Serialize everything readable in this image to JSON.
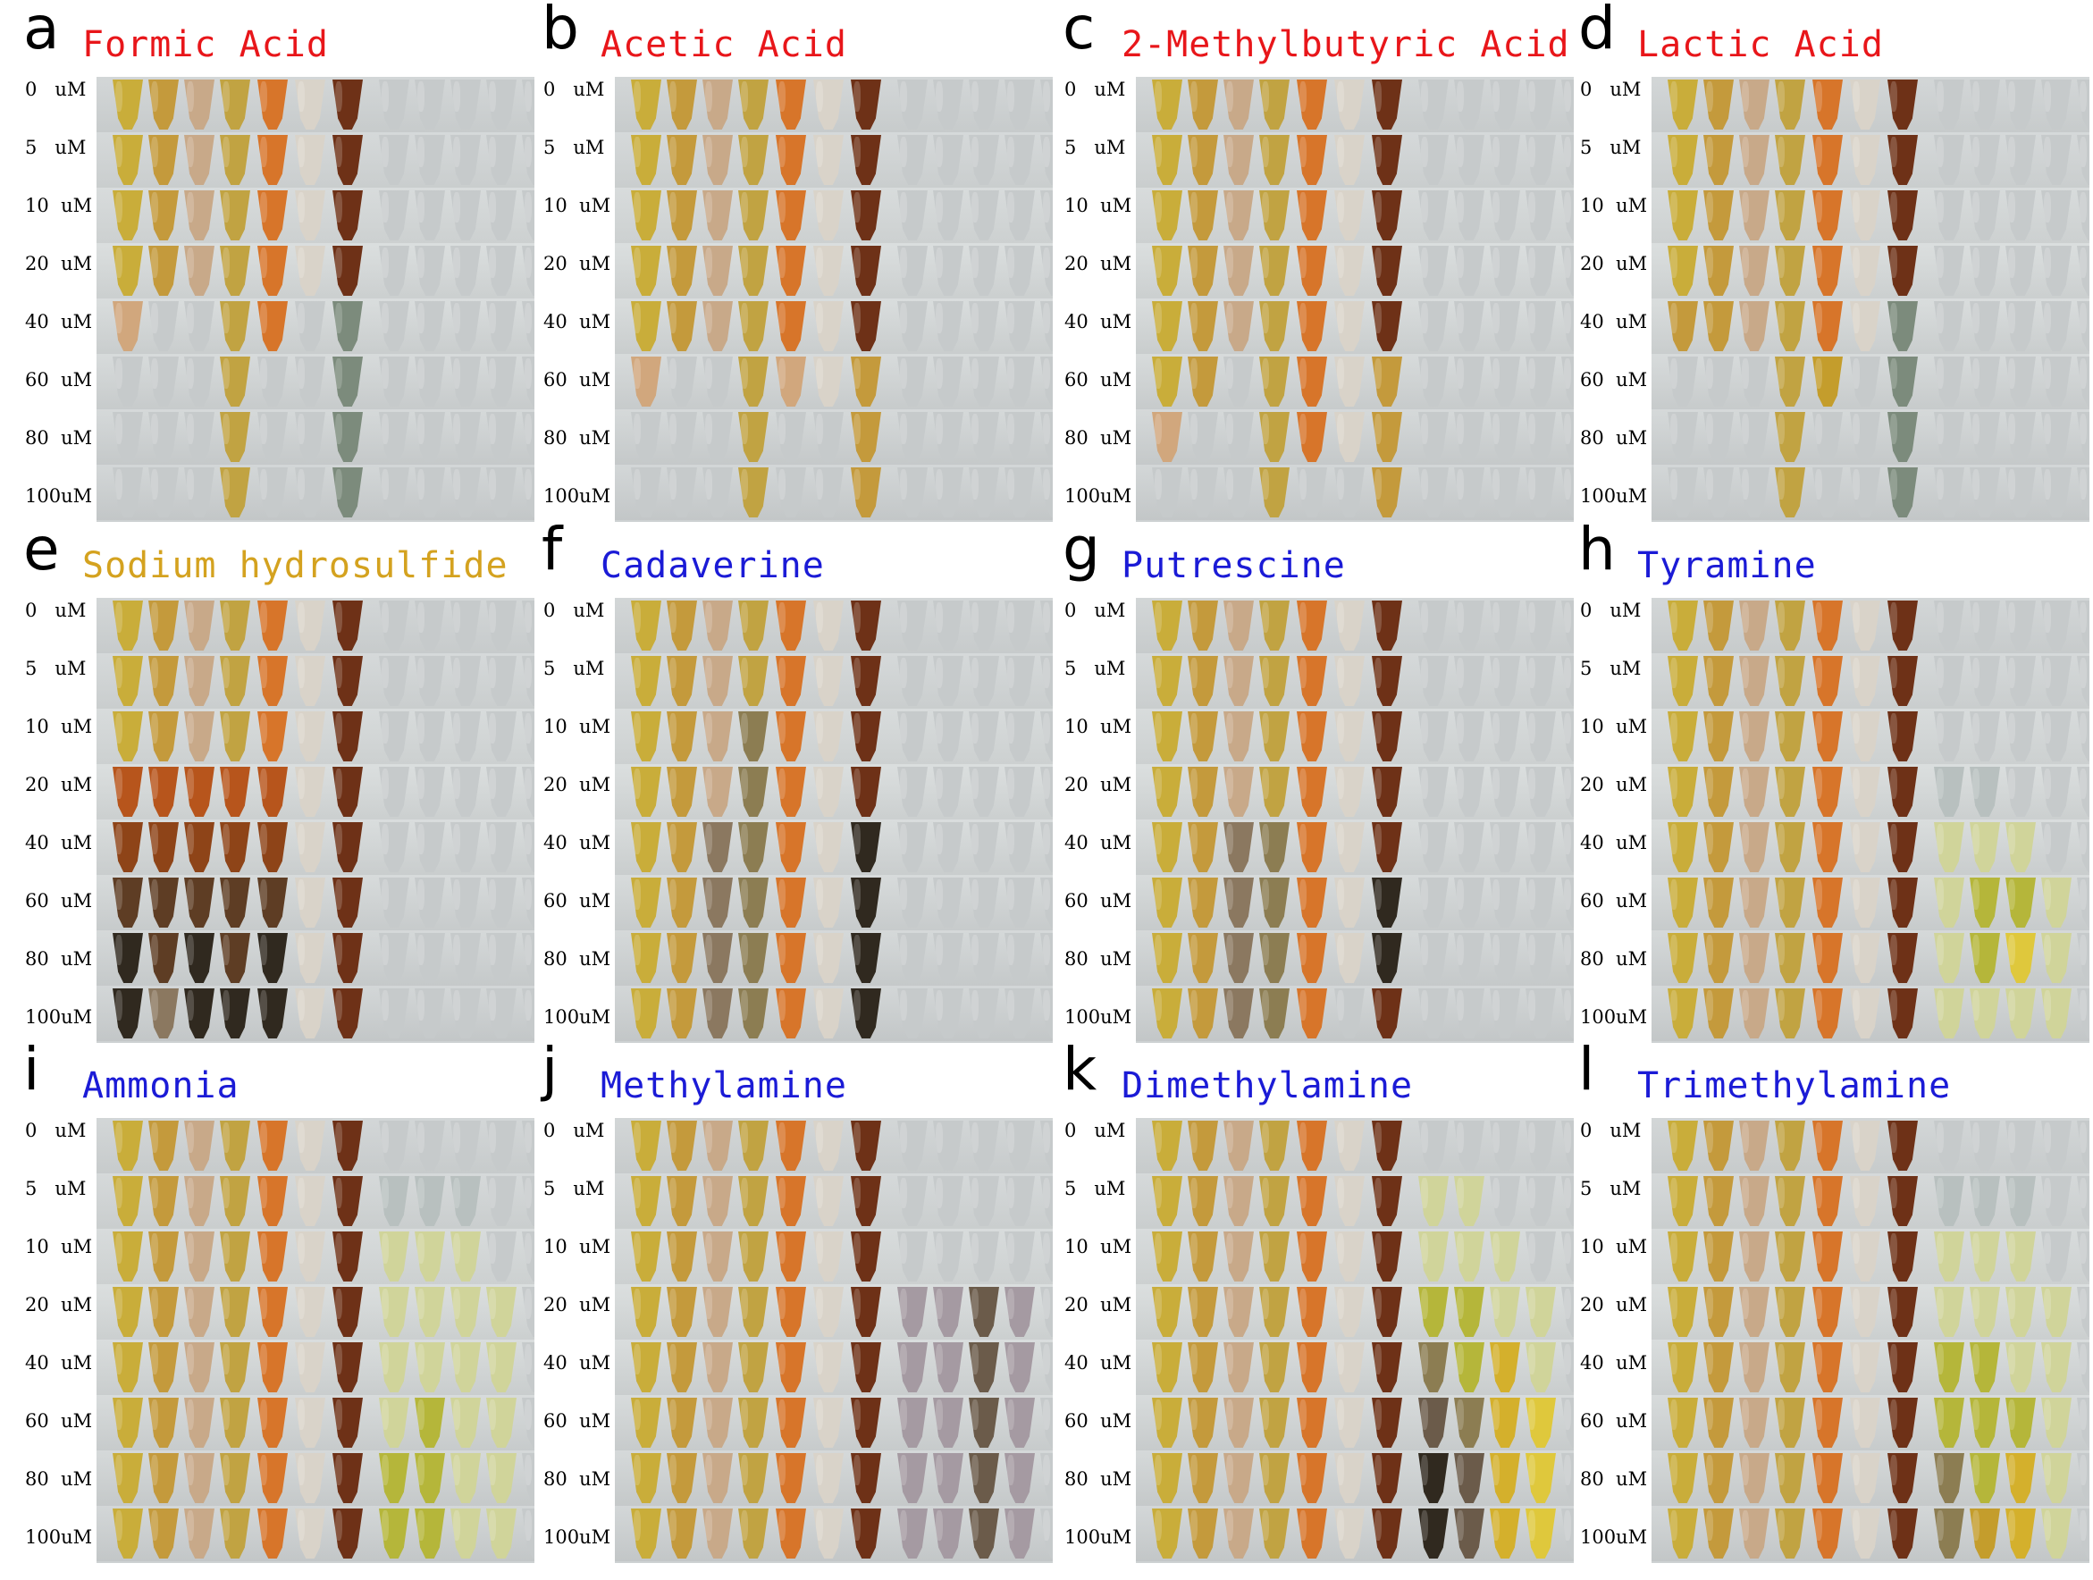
{
  "concentrations": [
    "0   uM",
    "5   uM",
    "10  uM",
    "20  uM",
    "40  uM",
    "60  uM",
    "80  uM",
    "100uM"
  ],
  "colors": {
    "acid": "#e8161a",
    "sulfide": "#d4a21f",
    "amine": "#1b1bd6"
  },
  "tube_colors": {
    "Y": "#c9ad3a",
    "A": "#c49a3c",
    "P": "#c8a989",
    "G": "#c1a342",
    "O": "#d7752a",
    "L": "#d9d3c9",
    "D": "#6e3117",
    "e": "#c6cacb",
    "g": "#b8c0bf",
    "y": "#d0d49a",
    "z": "#b5b63a",
    "s": "#c49d2c",
    "b": "#5e3d24",
    "k": "#30291f",
    "x": "#8b7860",
    "m": "#6b5b4a",
    "v": "#a59aa2",
    "q": "#7c8b7c",
    "r": "#b7551c",
    "t": "#d1a77d",
    "w": "#d4b02c",
    "c": "#dfc83c",
    "n": "#8c7d52",
    "u": "#8e4418"
  },
  "panels": [
    {
      "letter": "a",
      "title": "Formic Acid",
      "title_color": "acid",
      "rows": [
        "YAPGOLDeeeee",
        "YAPGOLDeeeee",
        "YAPGOLDeeeee",
        "YAPGOLDeeeee",
        "teeGOeqeeeee",
        "eeeGeeqeeeee",
        "eeeGeeqeeeee",
        "eeeGeeqeeeee"
      ]
    },
    {
      "letter": "b",
      "title": "Acetic Acid",
      "title_color": "acid",
      "rows": [
        "YAPGOLDeeeee",
        "YAPGOLDeeeee",
        "YAPGOLDeeeee",
        "YAPGOLDeeeee",
        "YAPGOLDeeeee",
        "teeGtLAeeeee",
        "eeeGeeAeeeee",
        "eeeGeeAeeeee"
      ]
    },
    {
      "letter": "c",
      "title": "2-Methylbutyric Acid",
      "title_color": "acid",
      "rows": [
        "YAPGOLDeeeee",
        "YAPGOLDeeeee",
        "YAPGOLDeeeee",
        "YAPGOLDeeeee",
        "YAPGOLDeeeee",
        "YAeGOLAeeeee",
        "teeGOLAeeeee",
        "eeeGeeAeeeee"
      ]
    },
    {
      "letter": "d",
      "title": "Lactic Acid",
      "title_color": "acid",
      "rows": [
        "YAPGOLDeeeee",
        "YAPGOLDeeeee",
        "YAPGOLDeeeee",
        "YAPGOLDeeeee",
        "AAPGOLqeeeee",
        "eeeGseqeeeee",
        "eeeGeeqeeeee",
        "eeeGeeqeeeee"
      ]
    },
    {
      "letter": "e",
      "title": "Sodium hydrosulfide",
      "title_color": "sulfide",
      "rows": [
        "YAPGOLDeeeee",
        "YAPGOLDeeeee",
        "YAPGOLDeeeee",
        "rrrrrLDeeeee",
        "uuuuuLDeeeee",
        "bbbbbLDeeeee",
        "kbkbkLDeeeee",
        "kxkkkLDeeeee"
      ]
    },
    {
      "letter": "f",
      "title": "Cadaverine",
      "title_color": "amine",
      "rows": [
        "YAPGOLDeeeee",
        "YAPGOLDeeeee",
        "YAPnOLDeeeee",
        "YAPnOLDeeeee",
        "YAxnOLkeeeee",
        "YAxnOLkeeeee",
        "YAxnOLkeeeee",
        "YAxnOLkeeeee"
      ]
    },
    {
      "letter": "g",
      "title": "Putrescine",
      "title_color": "amine",
      "rows": [
        "YAPGOLDeeeee",
        "YAPGOLDeeeee",
        "YAPGOLDeeeee",
        "YAPGOLDeeeee",
        "YAxnOLDeeeee",
        "YAxnOLkeeeee",
        "YAxnOLkeeeee",
        "YAxnOeDeeeee"
      ]
    },
    {
      "letter": "h",
      "title": "Tyramine",
      "title_color": "amine",
      "rows": [
        "YAPGOLDeeeee",
        "YAPGOLDeeeee",
        "YAPGOLDeeeee",
        "YAPGOLDggeee",
        "YAPGOLDyyyee",
        "YAPGOLDyzzye",
        "YAPGOLDyzcye",
        "YAPGOLDyyyye"
      ]
    },
    {
      "letter": "i",
      "title": "Ammonia",
      "title_color": "amine",
      "rows": [
        "YAPGOLDeeeee",
        "YAPGOLDgggee",
        "YAPGOLDyyyee",
        "YAPGOLDyyyye",
        "YAPGOLDyyyye",
        "YAPGOLDyzyye",
        "YAPGOLDzzyye",
        "YAPGOLDzzyye"
      ]
    },
    {
      "letter": "j",
      "title": "Methylamine",
      "title_color": "amine",
      "rows": [
        "YAPGOLDeeeee",
        "YAPGOLDeeeee",
        "YAPGOLDeeeee",
        "YAPGOLDvvmve",
        "YAPGOLDvvmve",
        "YAPGOLDvvmve",
        "YAPGOLDvvmve",
        "YAPGOLDvvmve"
      ]
    },
    {
      "letter": "k",
      "title": "Dimethylamine",
      "title_color": "amine",
      "rows": [
        "YAPGOLDeeeee",
        "YAPGOLDyyeee",
        "YAPGOLDyyyee",
        "YAPGOLDzzyye",
        "YAPGOLDnzwye",
        "YAPGOLDmnwce",
        "YAPGOLDkmwce",
        "YAPGOLDkmwce"
      ]
    },
    {
      "letter": "l",
      "title": "Trimethylamine",
      "title_color": "amine",
      "rows": [
        "YAPGOLDeeeee",
        "YAPGOLDgggee",
        "YAPGOLDyyyee",
        "YAPGOLDyyyye",
        "YAPGOLDzzyye",
        "YAPGOLDzzzye",
        "YAPGOLDnzwye",
        "YAPGOLDnswye"
      ]
    }
  ]
}
